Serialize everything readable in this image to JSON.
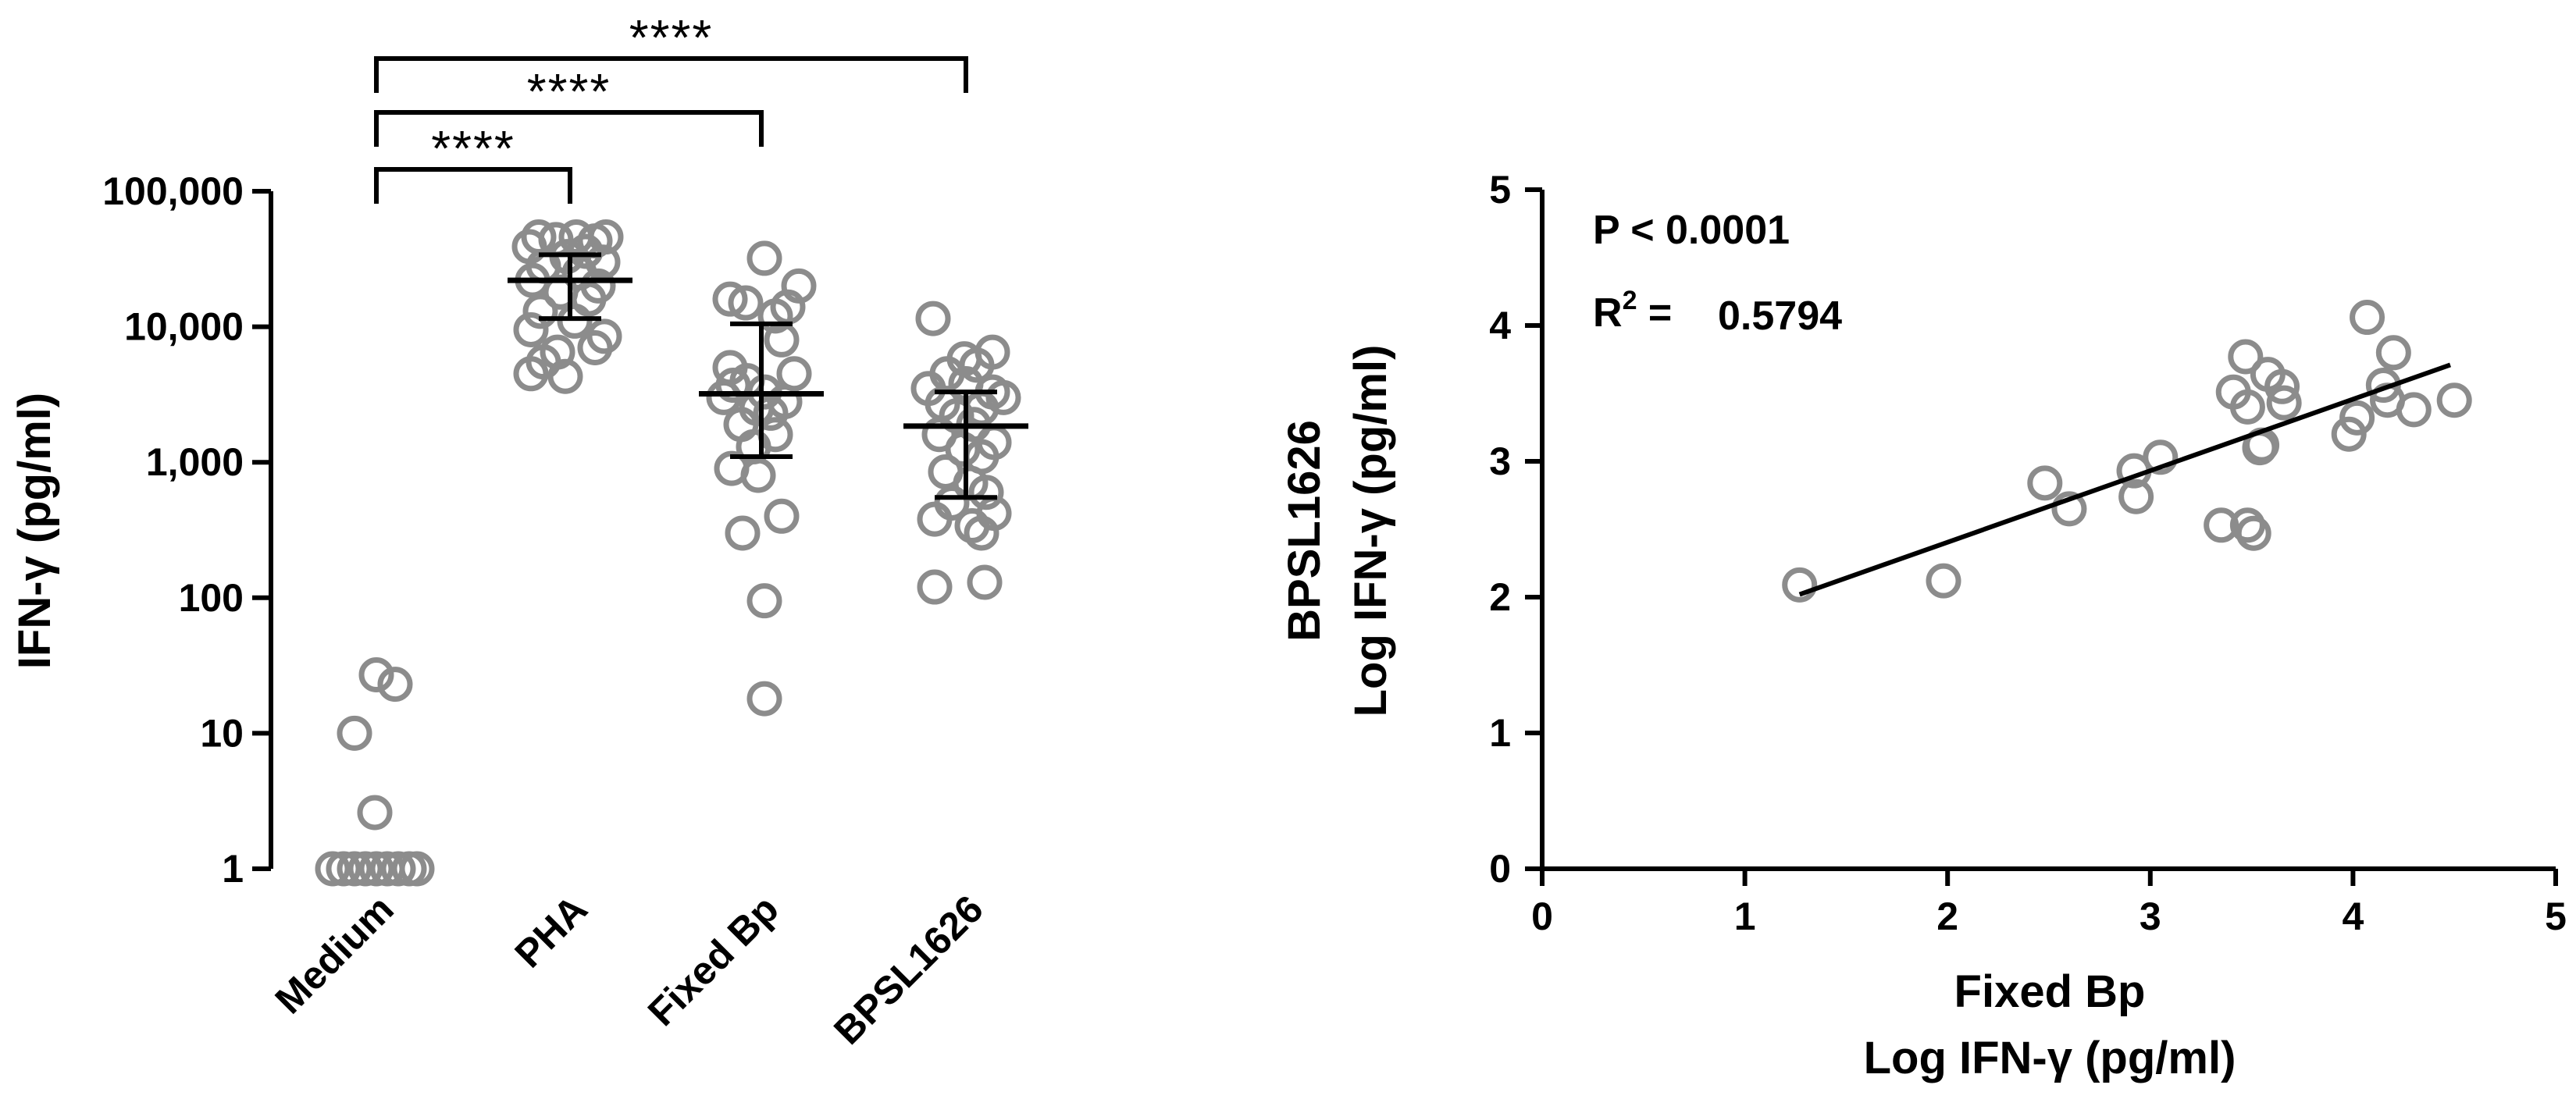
{
  "chart_data": [
    {
      "type": "scatter",
      "subtype": "dot-plot-log",
      "ylabel": "IFN-γ (pg/ml)",
      "yscale": "log10",
      "ylim": [
        1,
        100000
      ],
      "yticks": [
        {
          "value": 1,
          "label": "1"
        },
        {
          "value": 10,
          "label": "10"
        },
        {
          "value": 100,
          "label": "100"
        },
        {
          "value": 1000,
          "label": "1,000"
        },
        {
          "value": 10000,
          "label": "10,000"
        },
        {
          "value": 100000,
          "label": "100,000"
        }
      ],
      "categories": [
        "Medium",
        "PHA",
        "Fixed Bp",
        "BPSL1626"
      ],
      "groups": [
        {
          "name": "Medium",
          "points": [
            {
              "y": 27,
              "j": 0.0
            },
            {
              "y": 23,
              "j": 0.12
            },
            {
              "y": 10,
              "j": -0.14
            },
            {
              "y": 2.6,
              "j": -0.01
            },
            {
              "y": 1,
              "j": -0.28
            },
            {
              "y": 1,
              "j": -0.21
            },
            {
              "y": 1,
              "j": -0.14
            },
            {
              "y": 1,
              "j": -0.07
            },
            {
              "y": 1,
              "j": 0.0
            },
            {
              "y": 1,
              "j": 0.07
            },
            {
              "y": 1,
              "j": 0.14
            },
            {
              "y": 1,
              "j": 0.21
            },
            {
              "y": 1,
              "j": 0.26
            }
          ]
        },
        {
          "name": "PHA",
          "median": 22000,
          "iqr": [
            11500,
            34000
          ],
          "points": [
            {
              "y": 46000,
              "j": -0.2
            },
            {
              "y": 44000,
              "j": -0.09
            },
            {
              "y": 46000,
              "j": 0.04
            },
            {
              "y": 43000,
              "j": 0.16
            },
            {
              "y": 46000,
              "j": 0.23
            },
            {
              "y": 39000,
              "j": -0.26
            },
            {
              "y": 36000,
              "j": 0.1
            },
            {
              "y": 33000,
              "j": -0.02
            },
            {
              "y": 30000,
              "j": 0.21
            },
            {
              "y": 28000,
              "j": -0.17
            },
            {
              "y": 25000,
              "j": 0.06
            },
            {
              "y": 22000,
              "j": -0.24
            },
            {
              "y": 20000,
              "j": 0.18
            },
            {
              "y": 18000,
              "j": -0.06
            },
            {
              "y": 16000,
              "j": 0.12
            },
            {
              "y": 13000,
              "j": -0.19
            },
            {
              "y": 11000,
              "j": 0.03
            },
            {
              "y": 9500,
              "j": -0.25
            },
            {
              "y": 8500,
              "j": 0.22
            },
            {
              "y": 7000,
              "j": 0.16
            },
            {
              "y": 6500,
              "j": -0.08
            },
            {
              "y": 5500,
              "j": -0.17
            },
            {
              "y": 4500,
              "j": -0.25
            },
            {
              "y": 4300,
              "j": -0.03
            }
          ]
        },
        {
          "name": "Fixed Bp",
          "median": 3200,
          "iqr": [
            1100,
            10500
          ],
          "points": [
            {
              "y": 32000,
              "j": 0.02
            },
            {
              "y": 20000,
              "j": 0.24
            },
            {
              "y": 16000,
              "j": -0.2
            },
            {
              "y": 15000,
              "j": -0.1
            },
            {
              "y": 14000,
              "j": 0.17
            },
            {
              "y": 12000,
              "j": 0.09
            },
            {
              "y": 8000,
              "j": 0.13
            },
            {
              "y": 5000,
              "j": -0.2
            },
            {
              "y": 4500,
              "j": 0.21
            },
            {
              "y": 4000,
              "j": -0.09
            },
            {
              "y": 3700,
              "j": -0.18
            },
            {
              "y": 3300,
              "j": 0.02
            },
            {
              "y": 3000,
              "j": -0.24
            },
            {
              "y": 2800,
              "j": 0.15
            },
            {
              "y": 2500,
              "j": -0.03
            },
            {
              "y": 2300,
              "j": 0.06
            },
            {
              "y": 1900,
              "j": -0.13
            },
            {
              "y": 1600,
              "j": 0.09
            },
            {
              "y": 1300,
              "j": -0.05
            },
            {
              "y": 900,
              "j": -0.19
            },
            {
              "y": 800,
              "j": -0.02
            },
            {
              "y": 400,
              "j": 0.13
            },
            {
              "y": 300,
              "j": -0.12
            },
            {
              "y": 95,
              "j": 0.02
            },
            {
              "y": 18,
              "j": 0.02
            }
          ]
        },
        {
          "name": "BPSL1626",
          "median": 1850,
          "iqr": [
            550,
            3300
          ],
          "points": [
            {
              "y": 11500,
              "j": -0.21
            },
            {
              "y": 6500,
              "j": 0.17
            },
            {
              "y": 5800,
              "j": -0.01
            },
            {
              "y": 5200,
              "j": 0.07
            },
            {
              "y": 4500,
              "j": -0.12
            },
            {
              "y": 3800,
              "j": 0.0
            },
            {
              "y": 3500,
              "j": -0.24
            },
            {
              "y": 3300,
              "j": 0.17
            },
            {
              "y": 3000,
              "j": 0.24
            },
            {
              "y": 2700,
              "j": -0.15
            },
            {
              "y": 2500,
              "j": 0.1
            },
            {
              "y": 2200,
              "j": -0.06
            },
            {
              "y": 1900,
              "j": 0.05
            },
            {
              "y": 1600,
              "j": -0.17
            },
            {
              "y": 1400,
              "j": 0.18
            },
            {
              "y": 1250,
              "j": -0.02
            },
            {
              "y": 1100,
              "j": 0.1
            },
            {
              "y": 850,
              "j": -0.13
            },
            {
              "y": 700,
              "j": 0.03
            },
            {
              "y": 600,
              "j": 0.13
            },
            {
              "y": 500,
              "j": -0.09
            },
            {
              "y": 420,
              "j": 0.18
            },
            {
              "y": 380,
              "j": -0.2
            },
            {
              "y": 340,
              "j": 0.04
            },
            {
              "y": 300,
              "j": 0.1
            },
            {
              "y": 130,
              "j": 0.12
            },
            {
              "y": 120,
              "j": -0.2
            }
          ]
        }
      ],
      "comparisons": [
        {
          "from": "Medium",
          "to": "PHA",
          "label": "****"
        },
        {
          "from": "Medium",
          "to": "Fixed Bp",
          "label": "****"
        },
        {
          "from": "Medium",
          "to": "BPSL1626",
          "label": "****"
        }
      ]
    },
    {
      "type": "scatter",
      "xlabel": [
        "Fixed Bp",
        "Log IFN-γ (pg/ml)"
      ],
      "ylabel": [
        "BPSL1626",
        "Log IFN-γ (pg/ml)"
      ],
      "xlim": [
        0,
        5
      ],
      "ylim": [
        0,
        5
      ],
      "xticks": [
        "0",
        "1",
        "2",
        "3",
        "4",
        "5"
      ],
      "yticks": [
        "0",
        "1",
        "2",
        "3",
        "4",
        "5"
      ],
      "points": [
        {
          "x": 1.27,
          "y": 2.09
        },
        {
          "x": 1.98,
          "y": 2.12
        },
        {
          "x": 2.48,
          "y": 2.84
        },
        {
          "x": 2.6,
          "y": 2.65
        },
        {
          "x": 2.92,
          "y": 2.93
        },
        {
          "x": 2.93,
          "y": 2.74
        },
        {
          "x": 3.05,
          "y": 3.03
        },
        {
          "x": 3.35,
          "y": 2.53
        },
        {
          "x": 3.41,
          "y": 3.51
        },
        {
          "x": 3.47,
          "y": 3.77
        },
        {
          "x": 3.48,
          "y": 2.53
        },
        {
          "x": 3.48,
          "y": 3.4
        },
        {
          "x": 3.51,
          "y": 2.47
        },
        {
          "x": 3.54,
          "y": 3.1
        },
        {
          "x": 3.55,
          "y": 3.12
        },
        {
          "x": 3.58,
          "y": 3.64
        },
        {
          "x": 3.65,
          "y": 3.55
        },
        {
          "x": 3.66,
          "y": 3.43
        },
        {
          "x": 3.98,
          "y": 3.2
        },
        {
          "x": 4.02,
          "y": 3.32
        },
        {
          "x": 4.07,
          "y": 4.06
        },
        {
          "x": 4.15,
          "y": 3.56
        },
        {
          "x": 4.17,
          "y": 3.45
        },
        {
          "x": 4.2,
          "y": 3.8
        },
        {
          "x": 4.3,
          "y": 3.38
        },
        {
          "x": 4.5,
          "y": 3.45
        }
      ],
      "fit_line": {
        "x": [
          1.27,
          4.48
        ],
        "y": [
          2.02,
          3.71
        ]
      },
      "annotations": {
        "p_value": "P < 0.0001",
        "r2_prefix": "R",
        "r2_superscript": "2",
        "r2_equals": " =",
        "r2_value": "0.5794"
      }
    }
  ]
}
